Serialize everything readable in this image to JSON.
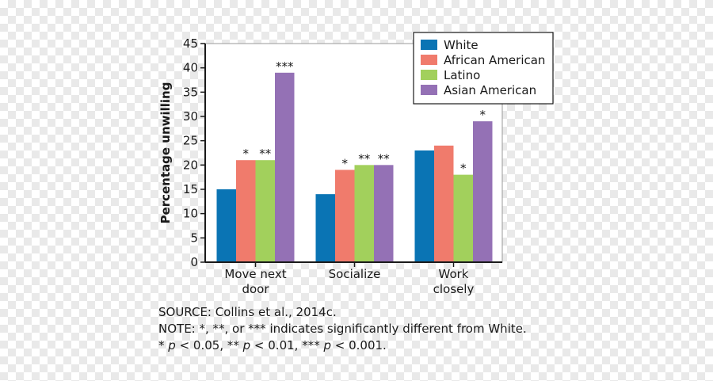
{
  "chart_data": {
    "type": "bar",
    "title": "",
    "xlabel": "",
    "ylabel": "Percentage unwilling",
    "ylim": [
      0,
      45
    ],
    "yticks": [
      "0",
      "5",
      "10",
      "15",
      "20",
      "25",
      "30",
      "35",
      "40",
      "45"
    ],
    "grid": false,
    "legend_position": "top-right",
    "categories": [
      {
        "label": "Move next door",
        "lines": [
          "Move next",
          "door"
        ]
      },
      {
        "label": "Socialize",
        "lines": [
          "Socialize"
        ]
      },
      {
        "label": "Work closely",
        "lines": [
          "Work",
          "closely"
        ]
      }
    ],
    "series": [
      {
        "name": "White",
        "color": "#0a74b4",
        "values": [
          15,
          14,
          23
        ],
        "sig": [
          "",
          "",
          ""
        ]
      },
      {
        "name": "African American",
        "color": "#f07b6c",
        "values": [
          21,
          19,
          24
        ],
        "sig": [
          "*",
          "*",
          ""
        ]
      },
      {
        "name": "Latino",
        "color": "#a2d05c",
        "values": [
          21,
          20,
          18
        ],
        "sig": [
          "**",
          "**",
          "*"
        ]
      },
      {
        "name": "Asian American",
        "color": "#9471b5",
        "values": [
          39,
          20,
          29
        ],
        "sig": [
          "***",
          "**",
          "*"
        ]
      }
    ]
  },
  "notes": {
    "source": "SOURCE: Collins et al., 2014c.",
    "note": "NOTE: *, **, or *** indicates significantly different from White.",
    "p1_prefix": "* ",
    "p1_var": "p",
    "p1_rest": " < 0.05, ** ",
    "p2_var": "p",
    "p2_rest": " < 0.01, *** ",
    "p3_var": "p",
    "p3_rest": " < 0.001."
  }
}
